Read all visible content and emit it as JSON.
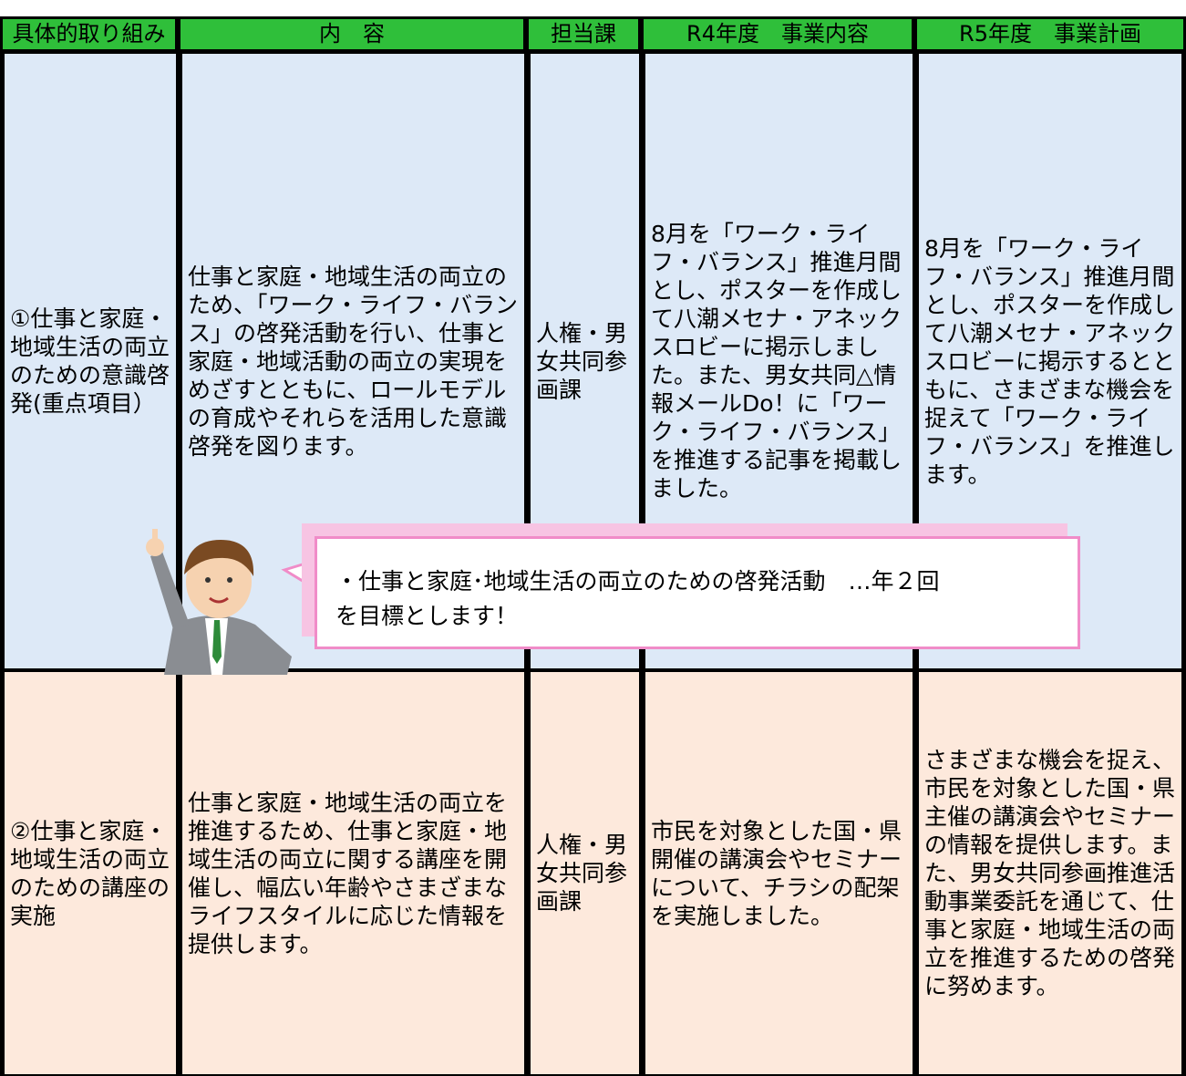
{
  "table": {
    "header": [
      "具体的取り組み",
      "内　容",
      "担当課",
      "R4年度　事業内容",
      "R5年度　事業計画"
    ],
    "rows": [
      [
        "①仕事と家庭・地域生活の両立のための意識啓発(重点項目）",
        "仕事と家庭・地域生活の両立のため、「ワーク・ライフ・バランス」の啓発活動を行い、仕事と家庭・地域活動の両立の実現をめざすとともに、ロールモデルの育成やそれらを活用した意識啓発を図ります。",
        "人権・男女共同参画課",
        "8月を「ワーク・ライフ・バランス」推進月間とし、ポスターを作成して八潮メセナ・アネックスロビーに掲示しました。また、男女共同△情報メールDo！に「ワーク・ライフ・バランス」を推進する記事を掲載しました。",
        "8月を「ワーク・ライフ・バランス」推進月間とし、ポスターを作成して八潮メセナ・アネックスロビーに掲示するとともに、さまざまな機会を捉えて「ワーク・ライフ・バランス」を推進します。"
      ],
      [
        "②仕事と家庭・地域生活の両立のための講座の実施",
        "仕事と家庭・地域生活の両立を推進するため、仕事と家庭・地域生活の両立に関する講座を開催し、幅広い年齢やさまざまなライフスタイルに応じた情報を提供します。",
        "人権・男女共同参画課",
        "市民を対象とした国・県開催の講演会やセミナーについて、チラシの配架を実施しました。",
        "さまざまな機会を捉え、市民を対象とした国・県主催の講演会やセミナーの情報を提供します。また、男女共同参画推進活動事業委託を通じて、仕事と家庭・地域生活の両立を推進するための啓発に努めます。"
      ]
    ]
  },
  "callout": {
    "lines": [
      "・仕事と家庭･地域生活の両立のための啓発活動　…年２回",
      "を目標とします！"
    ]
  }
}
